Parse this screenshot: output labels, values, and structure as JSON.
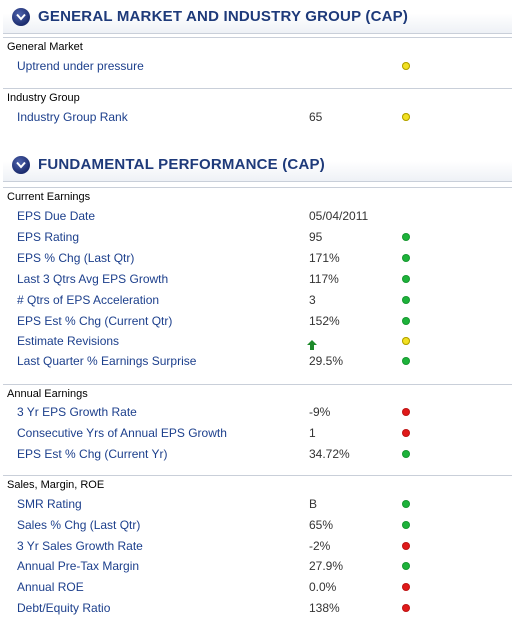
{
  "colors": {
    "green": "#1db33a",
    "red": "#e01919",
    "yellow": "#f2e022",
    "title": "#1e3a7a",
    "label": "#1c3f8c"
  },
  "section1": {
    "title": "GENERAL MARKET AND INDUSTRY GROUP (CAP)",
    "icon": "chevron-down-icon",
    "groups": [
      {
        "header": "General Market",
        "rows": [
          {
            "label": "Uptrend under pressure",
            "value": "",
            "status": "yellow"
          }
        ]
      },
      {
        "header": "Industry Group",
        "rows": [
          {
            "label": "Industry Group Rank",
            "value": "65",
            "status": "yellow"
          }
        ]
      }
    ]
  },
  "section2": {
    "title": "FUNDAMENTAL PERFORMANCE (CAP)",
    "icon": "chevron-down-icon",
    "groups": [
      {
        "header": "Current Earnings",
        "rows": [
          {
            "label": "EPS Due Date",
            "value": "05/04/2011",
            "status": ""
          },
          {
            "label": "EPS Rating",
            "value": "95",
            "status": "green"
          },
          {
            "label": "EPS % Chg (Last Qtr)",
            "value": "171%",
            "status": "green"
          },
          {
            "label": "Last 3 Qtrs Avg EPS Growth",
            "value": "117%",
            "status": "green"
          },
          {
            "label": "# Qtrs of EPS Acceleration",
            "value": "3",
            "status": "green"
          },
          {
            "label": "EPS Est % Chg (Current Qtr)",
            "value": "152%",
            "status": "green"
          },
          {
            "label": "Estimate Revisions",
            "value": "",
            "value_icon": "up-arrow-icon",
            "status": "yellow"
          },
          {
            "label": "Last Quarter % Earnings Surprise",
            "value": "29.5%",
            "status": "green"
          }
        ]
      },
      {
        "header": "Annual Earnings",
        "rows": [
          {
            "label": "3 Yr EPS Growth Rate",
            "value": "-9%",
            "status": "red"
          },
          {
            "label": "Consecutive Yrs of Annual EPS Growth",
            "value": "1",
            "status": "red"
          },
          {
            "label": "EPS Est % Chg (Current Yr)",
            "value": "34.72%",
            "status": "green"
          }
        ]
      },
      {
        "header": "Sales, Margin, ROE",
        "rows": [
          {
            "label": "SMR Rating",
            "value": "B",
            "status": "green"
          },
          {
            "label": "Sales % Chg (Last Qtr)",
            "value": "65%",
            "status": "green"
          },
          {
            "label": "3 Yr Sales Growth Rate",
            "value": "-2%",
            "status": "red"
          },
          {
            "label": "Annual Pre-Tax Margin",
            "value": "27.9%",
            "status": "green"
          },
          {
            "label": "Annual ROE",
            "value": "0.0%",
            "status": "red"
          },
          {
            "label": "Debt/Equity Ratio",
            "value": "138%",
            "status": "red"
          }
        ]
      }
    ]
  }
}
